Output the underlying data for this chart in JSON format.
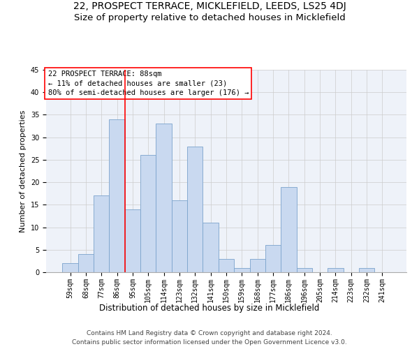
{
  "title1": "22, PROSPECT TERRACE, MICKLEFIELD, LEEDS, LS25 4DJ",
  "title2": "Size of property relative to detached houses in Micklefield",
  "xlabel": "Distribution of detached houses by size in Micklefield",
  "ylabel": "Number of detached properties",
  "categories": [
    "59sqm",
    "68sqm",
    "77sqm",
    "86sqm",
    "95sqm",
    "105sqm",
    "114sqm",
    "123sqm",
    "132sqm",
    "141sqm",
    "150sqm",
    "159sqm",
    "168sqm",
    "177sqm",
    "186sqm",
    "196sqm",
    "205sqm",
    "214sqm",
    "223sqm",
    "232sqm",
    "241sqm"
  ],
  "values": [
    2,
    4,
    17,
    34,
    14,
    26,
    33,
    16,
    28,
    11,
    3,
    1,
    3,
    6,
    19,
    1,
    0,
    1,
    0,
    1,
    0
  ],
  "bar_color": "#c9d9f0",
  "bar_edge_color": "#7ba3cc",
  "annotation_text": "22 PROSPECT TERRACE: 88sqm\n← 11% of detached houses are smaller (23)\n80% of semi-detached houses are larger (176) →",
  "annotation_box_color": "white",
  "annotation_box_edge": "red",
  "vline_color": "red",
  "ylim": [
    0,
    45
  ],
  "yticks": [
    0,
    5,
    10,
    15,
    20,
    25,
    30,
    35,
    40,
    45
  ],
  "grid_color": "#cccccc",
  "bg_color": "#eef2f9",
  "footer1": "Contains HM Land Registry data © Crown copyright and database right 2024.",
  "footer2": "Contains public sector information licensed under the Open Government Licence v3.0.",
  "title1_fontsize": 10,
  "title2_fontsize": 9.5,
  "xlabel_fontsize": 8.5,
  "ylabel_fontsize": 8,
  "tick_fontsize": 7,
  "annotation_fontsize": 7.5,
  "footer_fontsize": 6.5
}
